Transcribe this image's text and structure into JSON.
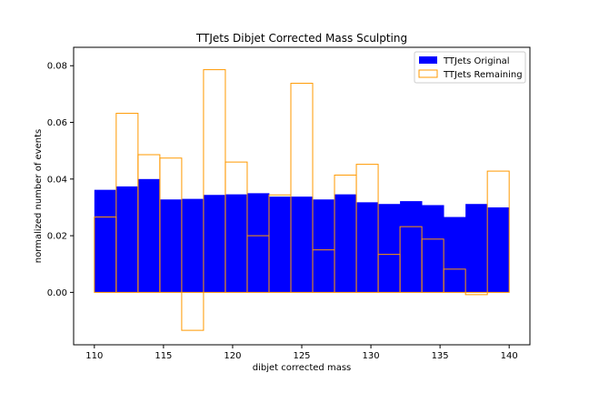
{
  "chart_data": {
    "type": "histogram",
    "title": "TTJets Dibjet Corrected Mass Sculpting",
    "xlabel": "dibjet corrected mass",
    "ylabel": "normalized number of events",
    "xlim": [
      108.5,
      141.5
    ],
    "ylim": [
      -0.0185,
      0.0865
    ],
    "xticks": [
      110,
      115,
      120,
      125,
      130,
      135,
      140
    ],
    "xtick_labels": [
      "110",
      "115",
      "120",
      "125",
      "130",
      "135",
      "140"
    ],
    "yticks": [
      0.0,
      0.02,
      0.04,
      0.06,
      0.08
    ],
    "ytick_labels": [
      "0.00",
      "0.02",
      "0.04",
      "0.06",
      "0.08"
    ],
    "bin_edges": [
      110,
      111.579,
      113.158,
      114.737,
      116.316,
      117.895,
      119.474,
      121.053,
      122.632,
      124.211,
      125.789,
      127.368,
      128.947,
      130.526,
      132.105,
      133.684,
      135.263,
      136.842,
      138.421,
      140
    ],
    "series": [
      {
        "name": "TTJets Original",
        "style": "filled",
        "color": "#0000ff",
        "values": [
          0.0362,
          0.0374,
          0.04,
          0.0328,
          0.033,
          0.0344,
          0.0346,
          0.035,
          0.0338,
          0.0338,
          0.0328,
          0.0346,
          0.0318,
          0.0312,
          0.0322,
          0.0308,
          0.0266,
          0.0312,
          0.03
        ]
      },
      {
        "name": "TTJets Remaining",
        "style": "step",
        "color": "#ff9900",
        "values": [
          0.0266,
          0.0632,
          0.0486,
          0.0474,
          -0.0134,
          0.0786,
          0.046,
          0.02,
          0.0344,
          0.0738,
          0.015,
          0.0414,
          0.0452,
          0.0134,
          0.0232,
          0.0188,
          0.0082,
          -0.0008,
          0.0428
        ]
      }
    ],
    "legend": {
      "position": "top-right"
    },
    "grid": false
  }
}
